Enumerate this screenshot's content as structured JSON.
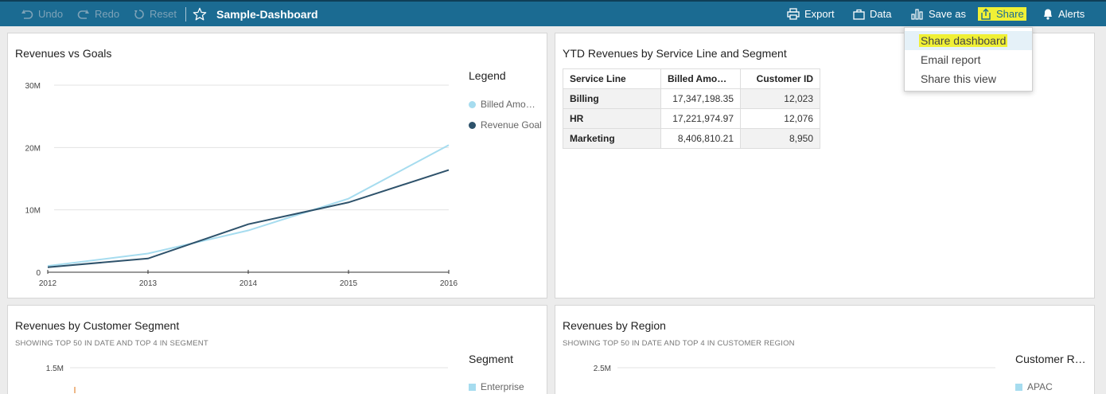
{
  "toolbar": {
    "undo": "Undo",
    "redo": "Redo",
    "reset": "Reset",
    "title": "Sample-Dashboard",
    "export": "Export",
    "data": "Data",
    "save_as": "Save as",
    "share": "Share",
    "alerts": "Alerts"
  },
  "share_menu": {
    "items": [
      "Share dashboard",
      "Email report",
      "Share this view"
    ],
    "selected": "Share dashboard"
  },
  "colors": {
    "topbar": "#1b6b92",
    "billed": "#a6dcef",
    "goal": "#2e526b",
    "highlight": "#f0f035"
  },
  "panels": {
    "revenues_vs_goals": {
      "title": "Revenues vs Goals",
      "legend_title": "Legend",
      "legend": [
        "Billed Amo…",
        "Revenue Goal"
      ]
    },
    "ytd": {
      "title": "YTD Revenues by Service Line and Segment",
      "columns": [
        "Service Line",
        "Billed Amo…",
        "Customer ID"
      ],
      "rows": [
        [
          "Billing",
          "17,347,198.35",
          "12,023"
        ],
        [
          "HR",
          "17,221,974.97",
          "12,076"
        ],
        [
          "Marketing",
          "8,406,810.21",
          "8,950"
        ]
      ]
    },
    "customer_segment": {
      "title": "Revenues by Customer Segment",
      "subtitle": "SHOWING TOP 50 IN DATE AND TOP 4 IN SEGMENT",
      "legend_title": "Segment",
      "legend": [
        "Enterprise"
      ],
      "y_tick": "1.5M"
    },
    "region": {
      "title": "Revenues by Region",
      "subtitle": "SHOWING TOP 50 IN DATE AND TOP 4 IN CUSTOMER REGION",
      "legend_title": "Customer R…",
      "legend": [
        "APAC"
      ],
      "y_tick": "2.5M"
    }
  },
  "chart_data": {
    "type": "line",
    "x": [
      2012,
      2013,
      2014,
      2015,
      2016
    ],
    "x_ticks": [
      "2012",
      "2013",
      "2014",
      "2015",
      "2016"
    ],
    "y_ticks": [
      "0",
      "10M",
      "20M",
      "30M"
    ],
    "ylim": [
      0,
      30000000
    ],
    "grid": true,
    "legend_position": "right",
    "series": [
      {
        "name": "Billed Amo…",
        "values": [
          1000000,
          3000000,
          6700000,
          11800000,
          20400000
        ],
        "color": "#a6dcef"
      },
      {
        "name": "Revenue Goal",
        "values": [
          800000,
          2200000,
          7700000,
          11200000,
          16400000
        ],
        "color": "#2e526b"
      }
    ]
  }
}
